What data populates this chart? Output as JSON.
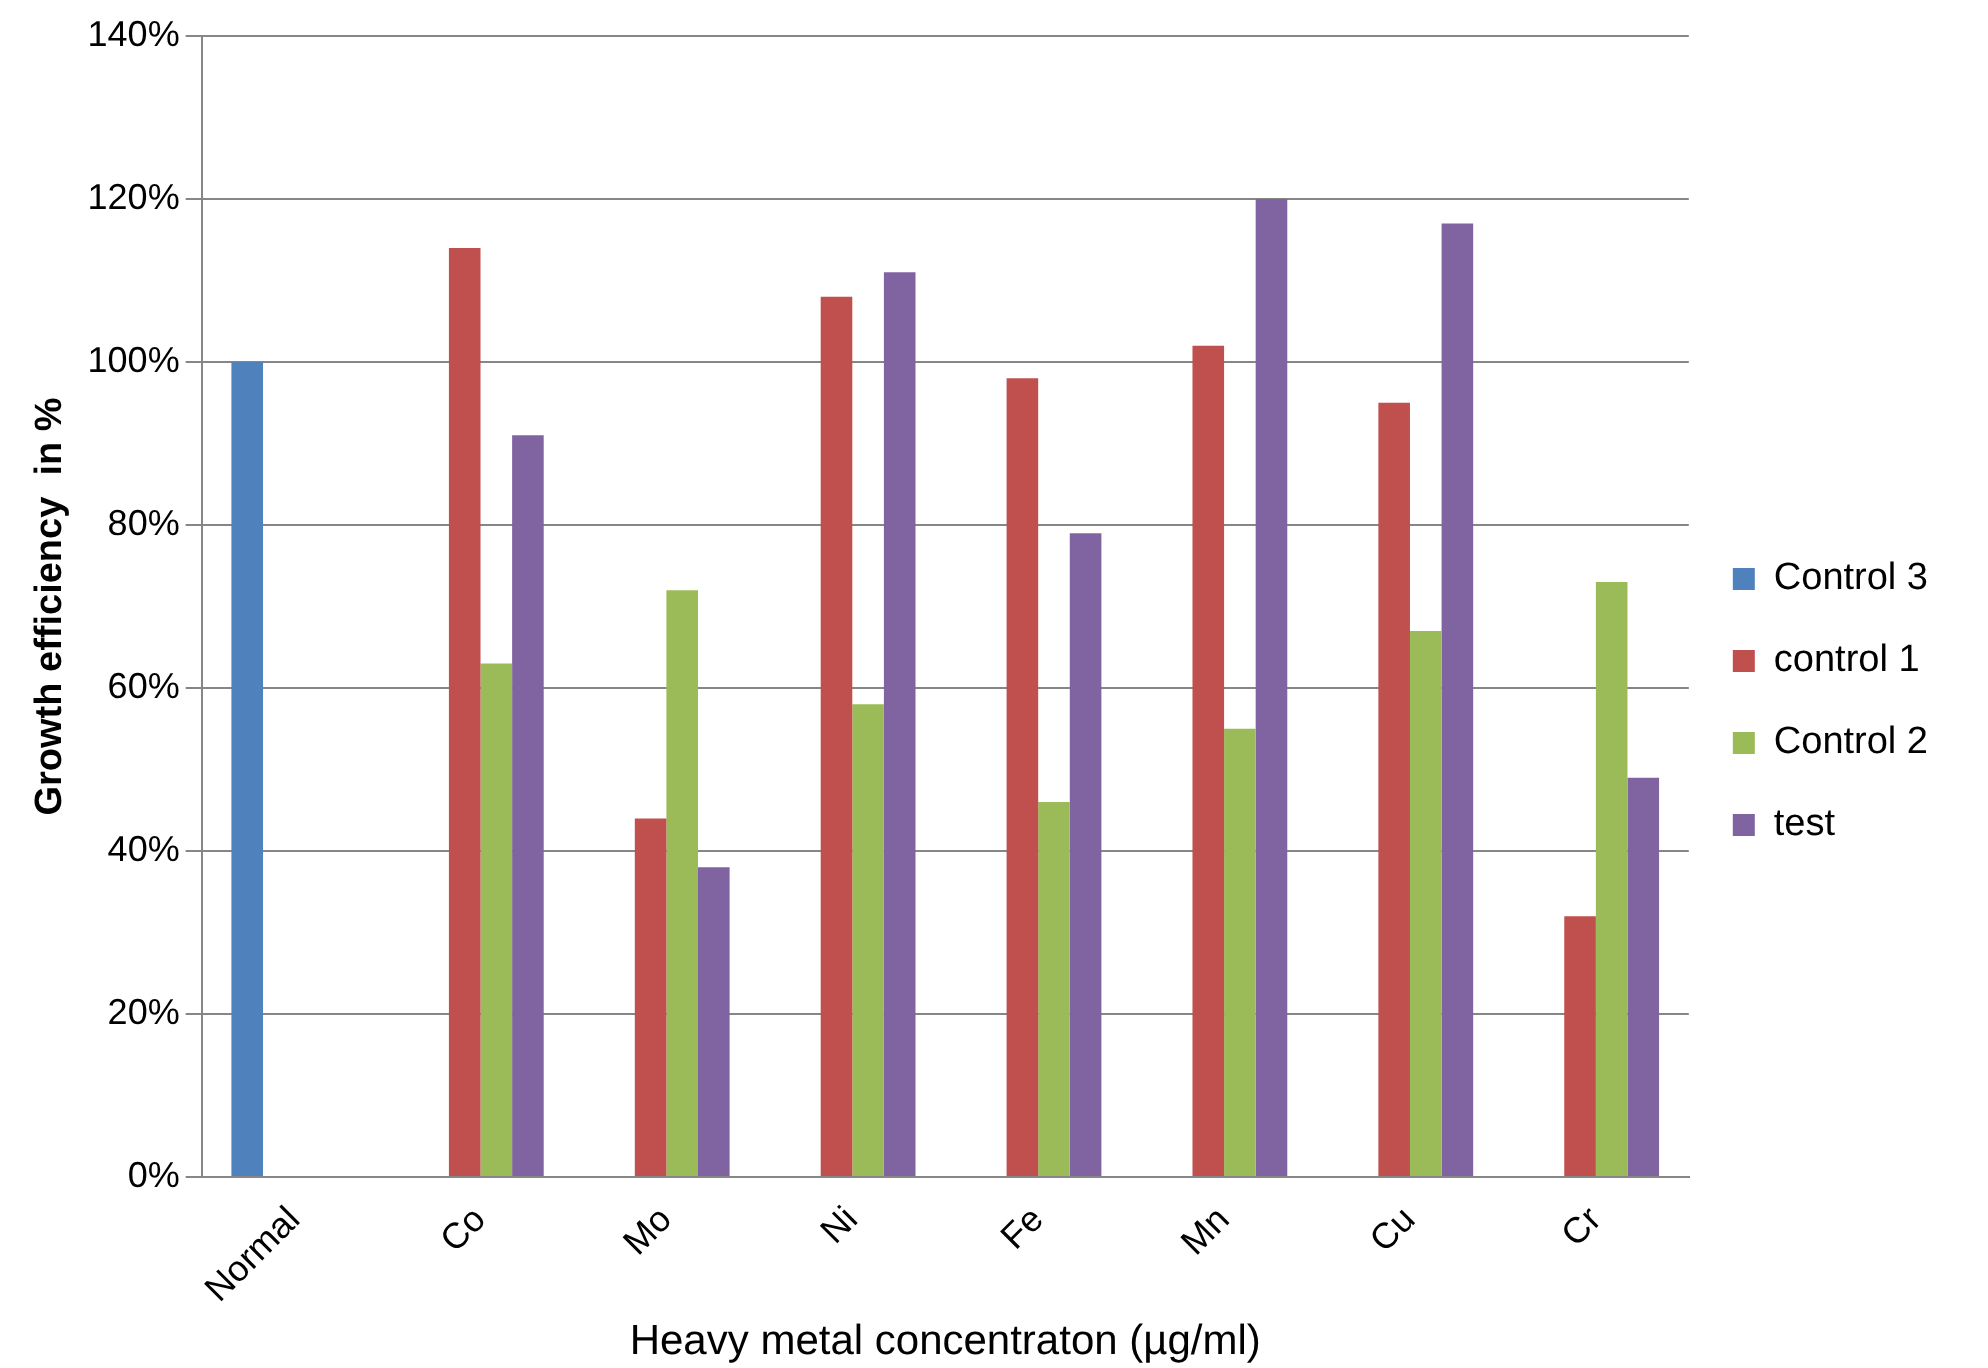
{
  "chart_data": {
    "type": "bar",
    "xlabel": "Heavy metal concentraton (µg/ml)",
    "ylabel": "Growth efficiency  in %",
    "categories": [
      "Normal",
      "Co",
      "Mo",
      "Ni",
      "Fe",
      "Mn",
      "Cu",
      "Cr"
    ],
    "series": [
      {
        "name": "Control 3",
        "color": "#4f81bd",
        "values": [
          100,
          null,
          null,
          null,
          null,
          null,
          null,
          null
        ]
      },
      {
        "name": "control 1",
        "color": "#c0504d",
        "values": [
          null,
          114,
          44,
          108,
          98,
          102,
          95,
          32
        ]
      },
      {
        "name": "Control 2",
        "color": "#9bbb59",
        "values": [
          null,
          63,
          72,
          58,
          46,
          55,
          67,
          73
        ]
      },
      {
        "name": "test",
        "color": "#8064a2",
        "values": [
          null,
          91,
          38,
          111,
          79,
          120,
          117,
          49
        ]
      }
    ],
    "ylim": [
      0,
      140
    ],
    "yticks": [
      {
        "value": 0,
        "label": "0%"
      },
      {
        "value": 20,
        "label": "20%"
      },
      {
        "value": 40,
        "label": "40%"
      },
      {
        "value": 60,
        "label": "60%"
      },
      {
        "value": 80,
        "label": "80%"
      },
      {
        "value": 100,
        "label": "100%"
      },
      {
        "value": 120,
        "label": "120%"
      },
      {
        "value": 140,
        "label": "140%"
      }
    ],
    "grid": "y",
    "legend": "right"
  }
}
